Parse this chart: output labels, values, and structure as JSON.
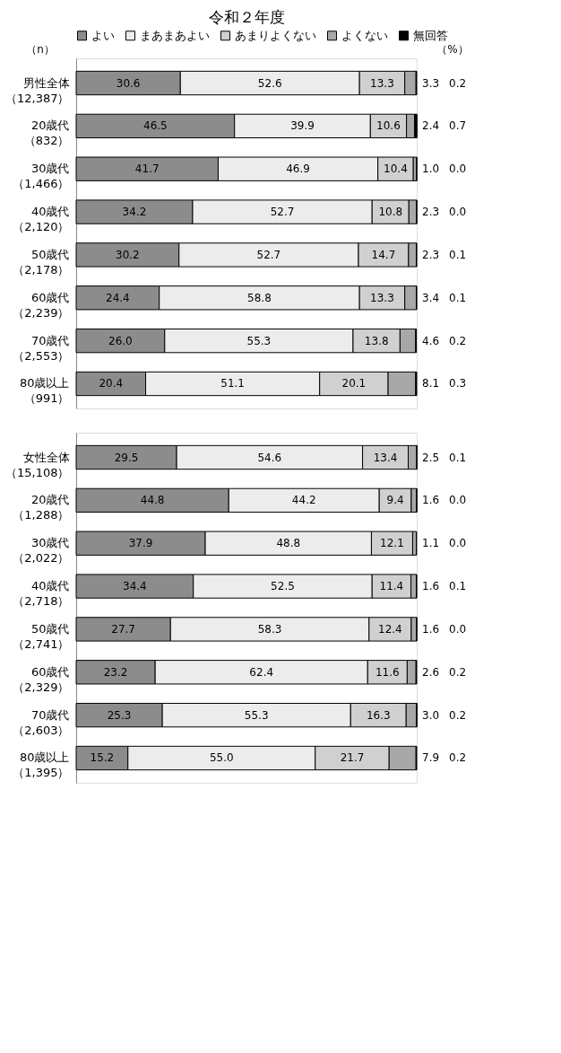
{
  "chart_data": [
    {
      "type": "bar",
      "title": "令和２年度",
      "orientation": "horizontal",
      "stacked": true,
      "xlim": [
        0,
        100
      ],
      "tick_labels": "y",
      "legend": "top",
      "annotations": [
        "（n）",
        "（%）"
      ],
      "categories": [
        "男性全体（12,387）",
        "20歳代（832）",
        "30歳代（1,466）",
        "40歳代（2,120）",
        "50歳代（2,178）",
        "60歳代（2,239）",
        "70歳代（2,553）",
        "80歳以上（991）"
      ],
      "series": [
        {
          "name": "よい",
          "color": "#8c8c8c",
          "values": [
            30.6,
            46.5,
            41.7,
            34.2,
            30.2,
            24.4,
            26.0,
            20.4
          ],
          "value_labels": [
            "30.6",
            "46.5",
            "41.7",
            "34.2",
            "30.2",
            "24.4",
            "26.0",
            "20.4"
          ]
        },
        {
          "name": "まあまあよい",
          "color": "#ececec",
          "values": [
            52.6,
            39.9,
            46.9,
            52.7,
            52.7,
            58.8,
            55.3,
            51.1
          ],
          "value_labels": [
            "52.6",
            "39.9",
            "46.9",
            "52.7",
            "52.7",
            "58.8",
            "55.3",
            "51.1"
          ]
        },
        {
          "name": "あまりよくない",
          "color": "#d0d0d0",
          "values": [
            13.3,
            10.6,
            10.4,
            10.8,
            14.7,
            13.3,
            13.8,
            20.1
          ],
          "value_labels": [
            "13.3",
            "10.6",
            "10.4",
            "10.8",
            "14.7",
            "13.3",
            "13.8",
            "20.1"
          ]
        },
        {
          "name": "よくない",
          "color": "#a8a8a8",
          "values": [
            3.3,
            2.4,
            1.0,
            2.3,
            2.3,
            3.4,
            4.6,
            8.1
          ],
          "value_labels": [
            "3.3",
            "2.4",
            "1.0",
            "2.3",
            "2.3",
            "3.4",
            "4.6",
            "8.1"
          ]
        },
        {
          "name": "無回答",
          "color": "#000000",
          "values": [
            0.2,
            0.7,
            0.0,
            0.0,
            0.1,
            0.1,
            0.2,
            0.3
          ],
          "value_labels": [
            "0.2",
            "0.7",
            "0.0",
            "0.0",
            "0.1",
            "0.1",
            "0.2",
            "0.3"
          ]
        }
      ]
    },
    {
      "type": "bar",
      "orientation": "horizontal",
      "stacked": true,
      "xlim": [
        0,
        100
      ],
      "tick_labels": "y",
      "legend": false,
      "categories": [
        "女性全体（15,108）",
        "20歳代（1,288）",
        "30歳代（2,022）",
        "40歳代（2,718）",
        "50歳代（2,741）",
        "60歳代（2,329）",
        "70歳代（2,603）",
        "80歳以上（1,395）"
      ],
      "series": [
        {
          "color": "#8c8c8c",
          "values": [
            29.5,
            44.8,
            37.9,
            34.4,
            27.7,
            23.2,
            25.3,
            15.2
          ],
          "value_labels": [
            "29.5",
            "44.8",
            "37.9",
            "34.4",
            "27.7",
            "23.2",
            "25.3",
            "15.2"
          ]
        },
        {
          "color": "#ececec",
          "values": [
            54.6,
            44.2,
            48.8,
            52.5,
            58.3,
            62.4,
            55.3,
            55.0
          ],
          "value_labels": [
            "54.6",
            "44.2",
            "48.8",
            "52.5",
            "58.3",
            "62.4",
            "55.3",
            "55.0"
          ]
        },
        {
          "color": "#d0d0d0",
          "values": [
            13.4,
            9.4,
            12.1,
            11.4,
            12.4,
            11.6,
            16.3,
            21.7
          ],
          "value_labels": [
            "13.4",
            "9.4",
            "12.1",
            "11.4",
            "12.4",
            "11.6",
            "16.3",
            "21.7"
          ]
        },
        {
          "color": "#a8a8a8",
          "values": [
            2.5,
            1.6,
            1.1,
            1.6,
            1.6,
            2.6,
            3.0,
            7.9
          ],
          "value_labels": [
            "2.5",
            "1.6",
            "1.1",
            "1.6",
            "1.6",
            "2.6",
            "3.0",
            "7.9"
          ]
        },
        {
          "color": "#000000",
          "values": [
            0.1,
            0.0,
            0.0,
            0.1,
            0.0,
            0.2,
            0.2,
            0.2
          ],
          "value_labels": [
            "0.1",
            "0.0",
            "0.0",
            "0.1",
            "0.0",
            "0.2",
            "0.2",
            "0.2"
          ]
        }
      ]
    }
  ]
}
